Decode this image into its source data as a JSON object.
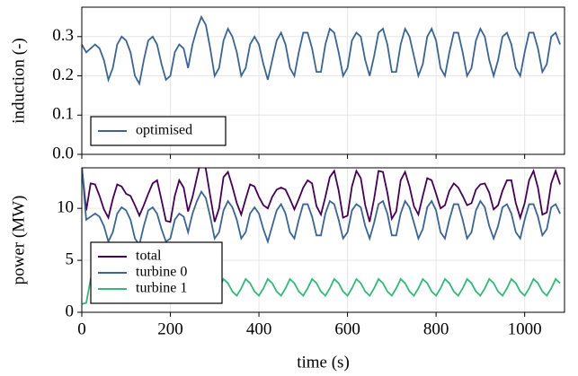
{
  "chart_data": [
    {
      "type": "line",
      "ylabel": "induction (-)",
      "legend": "lower left",
      "grid": true,
      "xlim": [
        0,
        1090
      ],
      "xticks": [
        0,
        200,
        400,
        600,
        800,
        1000
      ],
      "ylim": [
        0,
        0.375
      ],
      "yticks": [
        {
          "value": 0,
          "label": "0.0"
        },
        0.1,
        0.2,
        0.3
      ],
      "x": [
        0,
        10,
        20,
        30,
        40,
        50,
        60,
        70,
        80,
        90,
        100,
        110,
        120,
        130,
        140,
        150,
        160,
        170,
        180,
        190,
        200,
        210,
        220,
        230,
        240,
        250,
        260,
        270,
        280,
        290,
        300,
        310,
        320,
        330,
        340,
        350,
        360,
        370,
        380,
        390,
        400,
        410,
        420,
        430,
        440,
        450,
        460,
        470,
        480,
        490,
        500,
        510,
        520,
        530,
        540,
        550,
        560,
        570,
        580,
        590,
        600,
        610,
        620,
        630,
        640,
        650,
        660,
        670,
        680,
        690,
        700,
        710,
        720,
        730,
        740,
        750,
        760,
        770,
        780,
        790,
        800,
        810,
        820,
        830,
        840,
        850,
        860,
        870,
        880,
        890,
        900,
        910,
        920,
        930,
        940,
        950,
        960,
        970,
        980,
        990,
        1000,
        1010,
        1020,
        1030,
        1040,
        1050,
        1060,
        1070,
        1080
      ],
      "series": [
        {
          "name": "optimised",
          "color": "#3b6491",
          "values": [
            0.28,
            0.26,
            0.27,
            0.28,
            0.27,
            0.24,
            0.19,
            0.22,
            0.28,
            0.3,
            0.29,
            0.26,
            0.2,
            0.18,
            0.24,
            0.29,
            0.3,
            0.28,
            0.23,
            0.19,
            0.2,
            0.26,
            0.28,
            0.27,
            0.22,
            0.28,
            0.32,
            0.35,
            0.33,
            0.27,
            0.2,
            0.22,
            0.29,
            0.32,
            0.3,
            0.26,
            0.2,
            0.22,
            0.28,
            0.3,
            0.28,
            0.23,
            0.19,
            0.24,
            0.29,
            0.31,
            0.28,
            0.22,
            0.2,
            0.26,
            0.31,
            0.31,
            0.27,
            0.21,
            0.21,
            0.28,
            0.32,
            0.31,
            0.26,
            0.2,
            0.22,
            0.29,
            0.31,
            0.3,
            0.24,
            0.2,
            0.25,
            0.31,
            0.32,
            0.28,
            0.21,
            0.21,
            0.28,
            0.32,
            0.3,
            0.25,
            0.2,
            0.23,
            0.3,
            0.32,
            0.29,
            0.22,
            0.2,
            0.26,
            0.31,
            0.31,
            0.26,
            0.2,
            0.22,
            0.29,
            0.32,
            0.3,
            0.24,
            0.2,
            0.24,
            0.3,
            0.31,
            0.28,
            0.22,
            0.2,
            0.26,
            0.31,
            0.31,
            0.27,
            0.21,
            0.23,
            0.3,
            0.31,
            0.28
          ]
        }
      ]
    },
    {
      "type": "line",
      "ylabel": "power (MW)",
      "xlabel": "time (s)",
      "legend": "lower left",
      "grid": true,
      "xlim": [
        0,
        1090
      ],
      "xticks": [
        0,
        200,
        400,
        600,
        800,
        1000
      ],
      "ylim": [
        0,
        13.9
      ],
      "yticks": [
        0,
        5,
        10
      ],
      "x": [
        0,
        10,
        20,
        30,
        40,
        50,
        60,
        70,
        80,
        90,
        100,
        110,
        120,
        130,
        140,
        150,
        160,
        170,
        180,
        190,
        200,
        210,
        220,
        230,
        240,
        250,
        260,
        270,
        280,
        290,
        300,
        310,
        320,
        330,
        340,
        350,
        360,
        370,
        380,
        390,
        400,
        410,
        420,
        430,
        440,
        450,
        460,
        470,
        480,
        490,
        500,
        510,
        520,
        530,
        540,
        550,
        560,
        570,
        580,
        590,
        600,
        610,
        620,
        630,
        640,
        650,
        660,
        670,
        680,
        690,
        700,
        710,
        720,
        730,
        740,
        750,
        760,
        770,
        780,
        790,
        800,
        810,
        820,
        830,
        840,
        850,
        860,
        870,
        880,
        890,
        900,
        910,
        920,
        930,
        940,
        950,
        960,
        970,
        980,
        990,
        1000,
        1010,
        1020,
        1030,
        1040,
        1050,
        1060,
        1070,
        1080
      ],
      "series": [
        {
          "name": "total",
          "color": "#440154",
          "values": [
            14.0,
            9.8,
            12.4,
            12.3,
            11.2,
            9.9,
            9.1,
            10.9,
            12.3,
            12.1,
            11.4,
            11.2,
            10.3,
            9.3,
            10.3,
            11.4,
            12.4,
            12.7,
            10.8,
            8.8,
            8.7,
            11.2,
            12.7,
            12.0,
            9.7,
            11.1,
            13.0,
            14.8,
            13.8,
            11.2,
            8.7,
            10.0,
            13.0,
            13.5,
            12.1,
            10.5,
            9.4,
            10.9,
            12.3,
            12.1,
            11.1,
            10.3,
            10.0,
            11.1,
            11.8,
            12.0,
            11.8,
            10.9,
            9.9,
            10.9,
            12.0,
            12.7,
            12.4,
            10.2,
            9.4,
            11.1,
            13.0,
            13.6,
            11.7,
            9.1,
            9.3,
            12.1,
            13.6,
            12.9,
            10.3,
            8.7,
            10.9,
            13.6,
            13.5,
            11.5,
            9.0,
            9.7,
            12.7,
            13.5,
            12.1,
            10.2,
            9.4,
            11.2,
            12.9,
            12.7,
            11.4,
            10.0,
            10.3,
            11.7,
            12.4,
            12.0,
            11.2,
            10.3,
            10.5,
            11.8,
            12.3,
            12.4,
            11.5,
            9.9,
            10.3,
            11.7,
            12.7,
            12.7,
            10.5,
            9.1,
            10.5,
            12.7,
            13.6,
            12.0,
            9.4,
            9.6,
            12.4,
            13.6,
            12.3
          ]
        },
        {
          "name": "turbine 0",
          "color": "#3b6491",
          "values": [
            14.0,
            8.9,
            9.2,
            9.5,
            9.2,
            8.3,
            6.8,
            7.7,
            9.5,
            10.1,
            9.8,
            8.9,
            7.1,
            6.5,
            8.3,
            9.8,
            10.1,
            9.5,
            8.0,
            6.8,
            7.1,
            8.9,
            9.5,
            9.2,
            7.7,
            9.5,
            10.7,
            11.6,
            11.0,
            9.2,
            7.1,
            7.7,
            9.8,
            10.7,
            10.1,
            8.9,
            7.1,
            7.7,
            9.5,
            10.1,
            9.5,
            8.0,
            6.8,
            8.3,
            9.8,
            10.4,
            9.5,
            7.7,
            7.1,
            8.9,
            10.4,
            10.4,
            9.2,
            7.4,
            7.4,
            9.5,
            10.7,
            10.4,
            8.9,
            7.1,
            7.7,
            9.8,
            10.4,
            10.1,
            8.3,
            7.1,
            8.6,
            10.4,
            10.7,
            9.5,
            7.4,
            7.4,
            9.5,
            10.7,
            10.1,
            8.6,
            7.1,
            8.0,
            10.1,
            10.7,
            9.8,
            7.7,
            7.1,
            8.9,
            10.4,
            10.4,
            8.9,
            7.1,
            7.7,
            9.8,
            10.7,
            10.1,
            8.3,
            7.1,
            8.3,
            10.1,
            10.4,
            9.5,
            7.7,
            7.1,
            8.9,
            10.4,
            10.4,
            9.2,
            7.4,
            8.0,
            10.1,
            10.4,
            9.5
          ]
        },
        {
          "name": "turbine 1",
          "color": "#35b779",
          "values": [
            0.8,
            0.9,
            3.2,
            2.8,
            2.0,
            1.6,
            2.3,
            3.2,
            2.8,
            2.0,
            1.6,
            2.3,
            3.2,
            2.8,
            2.0,
            1.6,
            2.3,
            3.2,
            2.8,
            2.0,
            1.6,
            2.3,
            3.2,
            2.8,
            2.0,
            1.6,
            2.3,
            3.2,
            2.8,
            2.0,
            1.6,
            2.3,
            3.2,
            2.8,
            2.0,
            1.6,
            2.3,
            3.2,
            2.8,
            2.0,
            1.6,
            2.3,
            3.2,
            2.8,
            2.0,
            1.6,
            2.3,
            3.2,
            2.8,
            2.0,
            1.6,
            2.3,
            3.2,
            2.8,
            2.0,
            1.6,
            2.3,
            3.2,
            2.8,
            2.0,
            1.6,
            2.3,
            3.2,
            2.8,
            2.0,
            1.6,
            2.3,
            3.2,
            2.8,
            2.0,
            1.6,
            2.3,
            3.2,
            2.8,
            2.0,
            1.6,
            2.3,
            3.2,
            2.8,
            2.0,
            1.6,
            2.3,
            3.2,
            2.8,
            2.0,
            1.6,
            2.3,
            3.2,
            2.8,
            2.0,
            1.6,
            2.3,
            3.2,
            2.8,
            2.0,
            1.6,
            2.3,
            3.2,
            2.8,
            2.0,
            1.6,
            2.3,
            3.2,
            2.8,
            2.0,
            1.6,
            2.3,
            3.2,
            2.8
          ]
        }
      ]
    }
  ]
}
